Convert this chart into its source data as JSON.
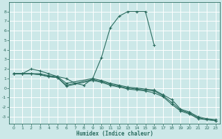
{
  "xlabel": "Humidex (Indice chaleur)",
  "background_color": "#cce8e8",
  "grid_color": "#ffffff",
  "line_color": "#2a6b5e",
  "xlim": [
    -0.5,
    23.5
  ],
  "ylim": [
    -3.7,
    9.0
  ],
  "xticks": [
    0,
    1,
    2,
    3,
    4,
    5,
    6,
    7,
    8,
    9,
    10,
    11,
    12,
    13,
    14,
    15,
    16,
    17,
    18,
    19,
    20,
    21,
    22,
    23
  ],
  "yticks": [
    -3,
    -2,
    -1,
    0,
    1,
    2,
    3,
    4,
    5,
    6,
    7,
    8
  ],
  "series": [
    {
      "x": [
        0,
        1,
        2,
        3,
        4,
        5,
        6,
        7,
        8,
        9,
        10,
        11,
        12,
        13,
        14,
        15,
        16
      ],
      "y": [
        1.5,
        1.5,
        2.0,
        1.8,
        1.5,
        1.2,
        1.0,
        0.5,
        0.3,
        1.0,
        3.2,
        6.3,
        7.5,
        8.0,
        8.0,
        8.0,
        4.5
      ]
    },
    {
      "x": [
        0,
        1,
        2,
        3,
        4,
        5,
        6,
        9,
        10,
        11,
        12,
        13,
        14,
        15,
        16,
        17,
        18,
        19,
        20,
        21,
        22,
        23
      ],
      "y": [
        1.5,
        1.5,
        1.5,
        1.5,
        1.3,
        1.2,
        0.5,
        1.0,
        0.8,
        0.5,
        0.3,
        0.1,
        0.0,
        -0.1,
        -0.2,
        -0.7,
        -1.2,
        -2.2,
        -2.5,
        -3.0,
        -3.2,
        -3.3
      ]
    },
    {
      "x": [
        0,
        1,
        2,
        3,
        4,
        5,
        6,
        9,
        10,
        11,
        12,
        13,
        14,
        15,
        16,
        17,
        18,
        19,
        20,
        21,
        22,
        23
      ],
      "y": [
        1.5,
        1.5,
        1.5,
        1.4,
        1.2,
        1.1,
        0.3,
        0.9,
        0.7,
        0.4,
        0.2,
        0.0,
        -0.1,
        -0.2,
        -0.3,
        -0.8,
        -1.5,
        -2.3,
        -2.6,
        -3.1,
        -3.3,
        -3.4
      ]
    },
    {
      "x": [
        0,
        1,
        2,
        3,
        4,
        5,
        6,
        9,
        10,
        11,
        12,
        13,
        14,
        15,
        16,
        17,
        18,
        19,
        20,
        21,
        23
      ],
      "y": [
        1.5,
        1.5,
        1.5,
        1.4,
        1.2,
        1.1,
        0.2,
        0.8,
        0.6,
        0.3,
        0.1,
        -0.1,
        -0.2,
        -0.3,
        -0.5,
        -0.9,
        -1.7,
        -2.4,
        -2.7,
        -3.2,
        -3.4
      ]
    }
  ]
}
